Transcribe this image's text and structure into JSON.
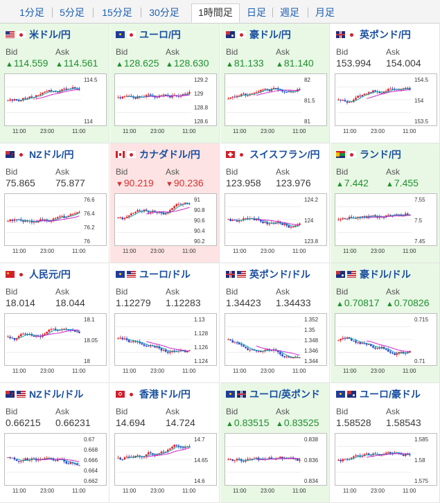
{
  "tabs": [
    {
      "label": "1分足",
      "active": false
    },
    {
      "label": "5分足",
      "active": false
    },
    {
      "label": "15分足",
      "active": false
    },
    {
      "label": "30分足",
      "active": false
    },
    {
      "label": "1時間足",
      "active": true
    },
    {
      "label": "日足",
      "active": false
    },
    {
      "label": "週足",
      "active": false
    },
    {
      "label": "月足",
      "active": false
    }
  ],
  "bid_label": "Bid",
  "ask_label": "Ask",
  "x_labels": [
    "11:00",
    "23:00",
    "11:00"
  ],
  "colors": {
    "up_bg": "#e8f8e5",
    "down_bg": "#fde3e3",
    "up_text": "#1f8f2e",
    "down_text": "#d93030",
    "candle_up": "#e02020",
    "candle_down": "#2244cc",
    "ma_short": "#18a0b0",
    "ma_long": "#cc22cc",
    "title": "#1a4fa0"
  },
  "pairs": [
    {
      "name": "米ドル/円",
      "bid": "114.559",
      "ask": "114.561",
      "trend": "up",
      "flags": [
        "us",
        "jp"
      ],
      "yticks": [
        "114.5",
        "114"
      ]
    },
    {
      "name": "ユーロ/円",
      "bid": "128.625",
      "ask": "128.630",
      "trend": "up",
      "flags": [
        "eu",
        "jp"
      ],
      "yticks": [
        "129.2",
        "129",
        "128.8",
        "128.6"
      ]
    },
    {
      "name": "豪ドル/円",
      "bid": "81.133",
      "ask": "81.140",
      "trend": "up",
      "flags": [
        "au",
        "jp"
      ],
      "yticks": [
        "82",
        "81.5",
        "81"
      ]
    },
    {
      "name": "英ポンド/円",
      "bid": "153.994",
      "ask": "154.004",
      "trend": "flat",
      "flags": [
        "gb",
        "jp"
      ],
      "yticks": [
        "154.5",
        "154",
        "153.5"
      ]
    },
    {
      "name": "NZドル/円",
      "bid": "75.865",
      "ask": "75.877",
      "trend": "flat",
      "flags": [
        "nz",
        "jp"
      ],
      "yticks": [
        "76.6",
        "76.4",
        "76.2",
        "76"
      ]
    },
    {
      "name": "カナダドル/円",
      "bid": "90.219",
      "ask": "90.236",
      "trend": "down",
      "flags": [
        "ca",
        "jp"
      ],
      "yticks": [
        "91",
        "90.8",
        "90.6",
        "90.4",
        "90.2"
      ]
    },
    {
      "name": "スイスフラン/円",
      "bid": "123.958",
      "ask": "123.976",
      "trend": "flat",
      "flags": [
        "ch",
        "jp"
      ],
      "yticks": [
        "124.2",
        "124",
        "123.8"
      ]
    },
    {
      "name": "ランド/円",
      "bid": "7.442",
      "ask": "7.455",
      "trend": "up",
      "flags": [
        "za",
        "jp"
      ],
      "yticks": [
        "7.55",
        "7.5",
        "7.45"
      ]
    },
    {
      "name": "人民元/円",
      "bid": "18.014",
      "ask": "18.044",
      "trend": "flat",
      "flags": [
        "cn",
        "jp"
      ],
      "yticks": [
        "18.1",
        "18.05",
        "18"
      ]
    },
    {
      "name": "ユーロ/ドル",
      "bid": "1.12279",
      "ask": "1.12283",
      "trend": "flat",
      "flags": [
        "eu",
        "us"
      ],
      "yticks": [
        "1.13",
        "1.128",
        "1.126",
        "1.124"
      ]
    },
    {
      "name": "英ポンド/ドル",
      "bid": "1.34423",
      "ask": "1.34433",
      "trend": "flat",
      "flags": [
        "gb",
        "us"
      ],
      "yticks": [
        "1.352",
        "1.35",
        "1.348",
        "1.346",
        "1.344"
      ]
    },
    {
      "name": "豪ドル/ドル",
      "bid": "0.70817",
      "ask": "0.70826",
      "trend": "up",
      "flags": [
        "au",
        "us"
      ],
      "yticks": [
        "0.715",
        "0.71"
      ]
    },
    {
      "name": "NZドル/ドル",
      "bid": "0.66215",
      "ask": "0.66231",
      "trend": "flat",
      "flags": [
        "nz",
        "us"
      ],
      "yticks": [
        "0.67",
        "0.668",
        "0.666",
        "0.664",
        "0.662"
      ]
    },
    {
      "name": "香港ドル/円",
      "bid": "14.694",
      "ask": "14.724",
      "trend": "flat",
      "flags": [
        "hk",
        "jp"
      ],
      "yticks": [
        "14.7",
        "14.65",
        "14.6"
      ]
    },
    {
      "name": "ユーロ/英ポンド",
      "bid": "0.83515",
      "ask": "0.83525",
      "trend": "up",
      "flags": [
        "eu",
        "gb"
      ],
      "yticks": [
        "0.838",
        "0.836",
        "0.834"
      ]
    },
    {
      "name": "ユーロ/豪ドル",
      "bid": "1.58528",
      "ask": "1.58543",
      "trend": "flat",
      "flags": [
        "eu",
        "au"
      ],
      "yticks": [
        "1.585",
        "1.58",
        "1.575"
      ]
    }
  ]
}
